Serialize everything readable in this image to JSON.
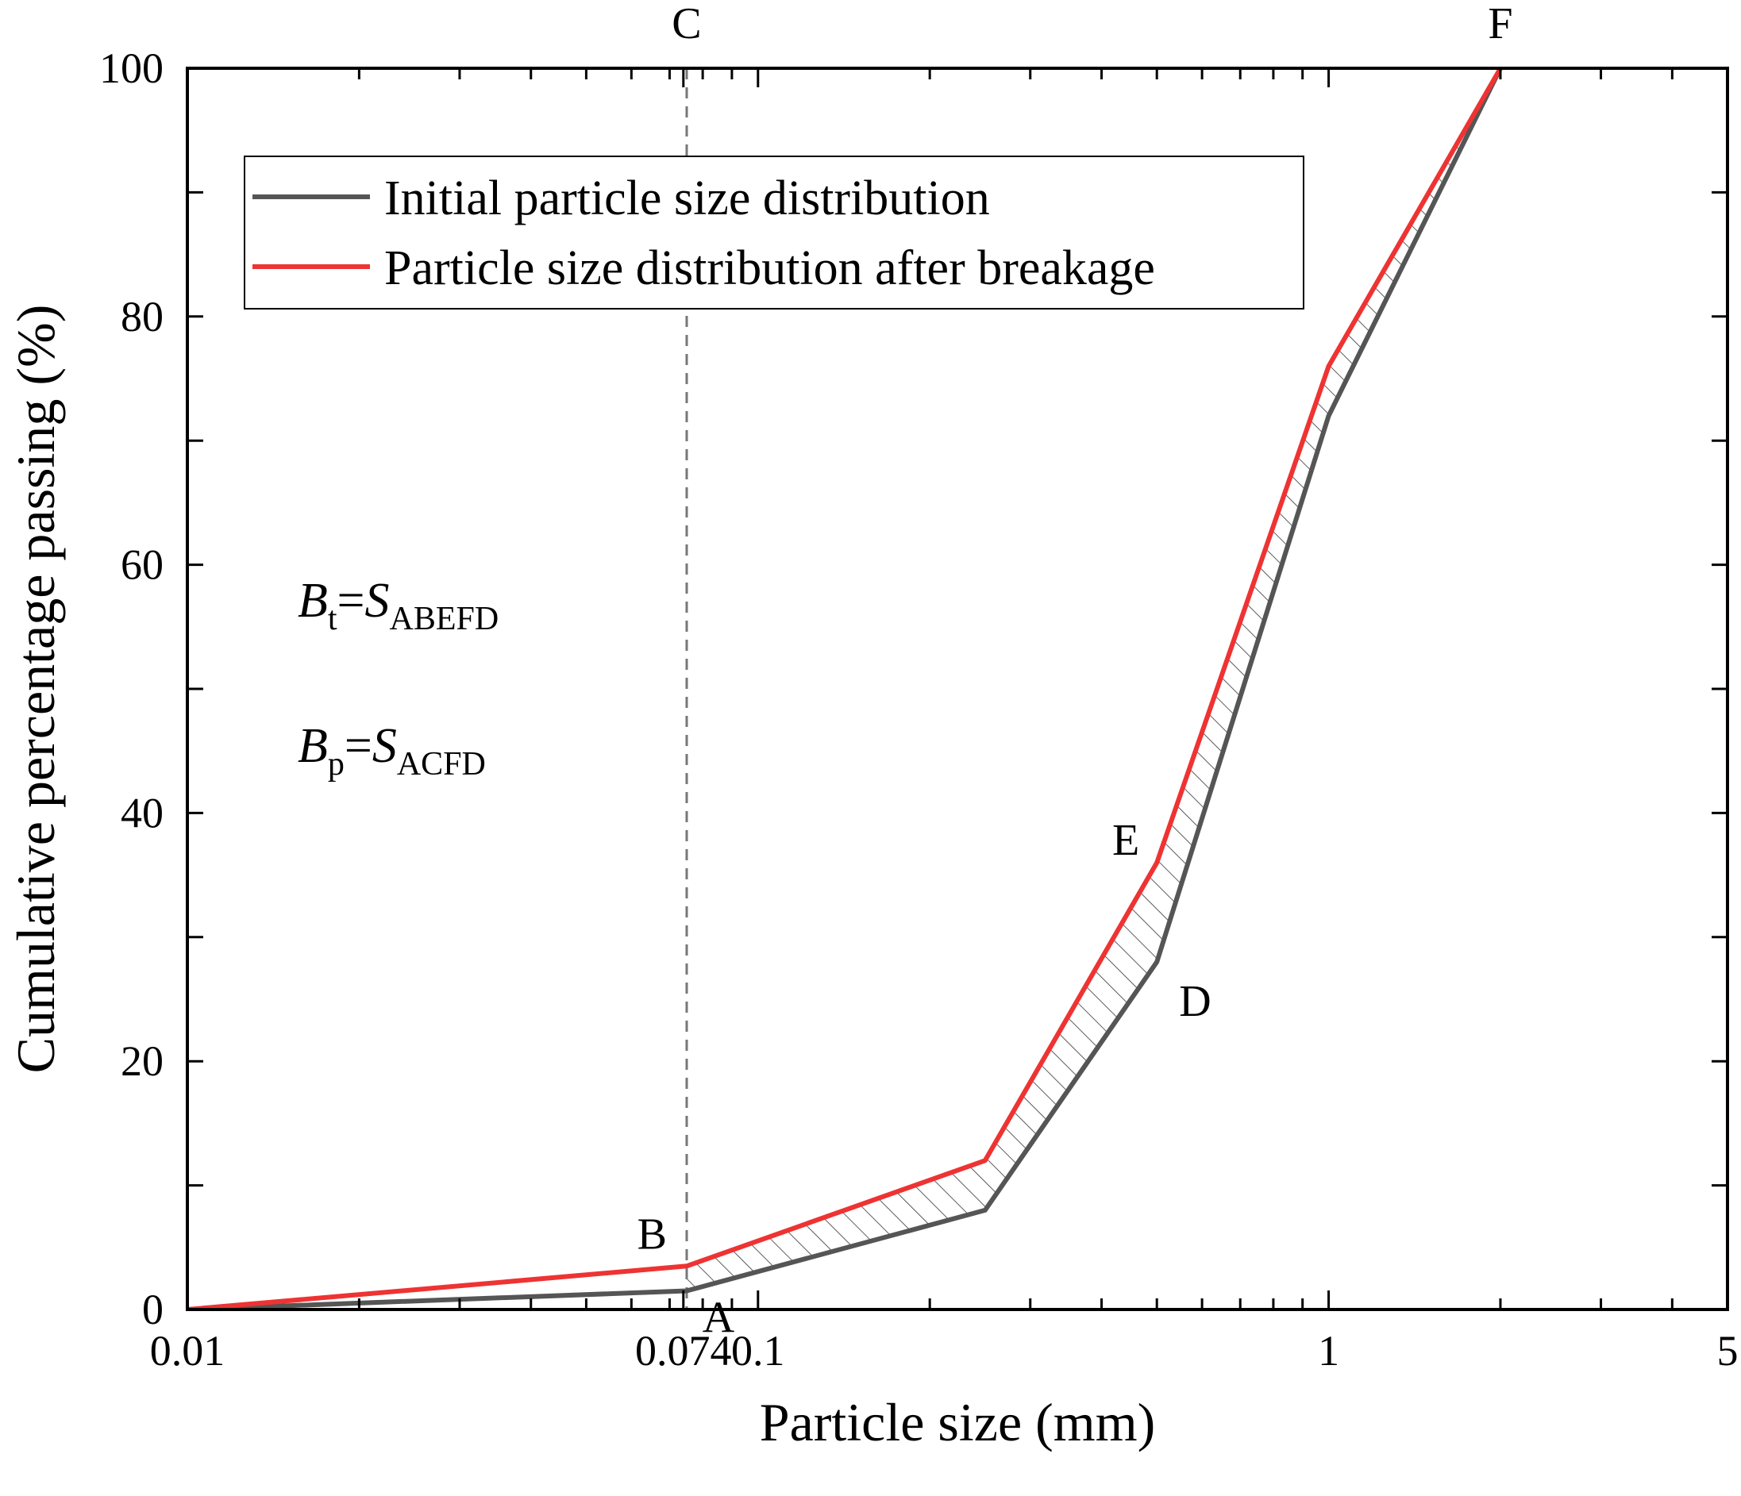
{
  "chart_data": {
    "type": "line",
    "xscale": "log",
    "xlim": [
      0.01,
      5
    ],
    "ylim": [
      0,
      100
    ],
    "xlabel": "Particle size (mm)",
    "ylabel": "Cumulative percentage passing (%)",
    "x_ticks": [
      {
        "value": 0.01,
        "label": "0.01"
      },
      {
        "value": 0.074,
        "label": "0.074"
      },
      {
        "value": 0.1,
        "label": "0.1"
      },
      {
        "value": 1,
        "label": "1"
      },
      {
        "value": 5,
        "label": "5"
      }
    ],
    "y_ticks": [
      {
        "value": 0,
        "label": "0"
      },
      {
        "value": 20,
        "label": "20"
      },
      {
        "value": 40,
        "label": "40"
      },
      {
        "value": 60,
        "label": "60"
      },
      {
        "value": 80,
        "label": "80"
      },
      {
        "value": 100,
        "label": "100"
      }
    ],
    "y_minor_step": 10,
    "series": [
      {
        "name": "Initial particle size distribution",
        "color": "#555555",
        "x": [
          0.01,
          0.075,
          0.25,
          0.5,
          1.0,
          2.0
        ],
        "y": [
          0,
          1.5,
          8,
          28,
          72,
          100
        ]
      },
      {
        "name": "Particle size distribution after breakage",
        "color": "#ee3333",
        "x": [
          0.01,
          0.075,
          0.25,
          0.5,
          1.0,
          2.0
        ],
        "y": [
          0,
          3.5,
          12,
          36,
          76,
          100
        ]
      }
    ],
    "reference_line": {
      "x": 0.075,
      "style": "dashed",
      "color": "#777777"
    },
    "hatched_region": {
      "between_series": [
        1,
        0
      ],
      "from_x": 0.075,
      "to_x": 2.0
    },
    "point_labels": [
      {
        "text": "A",
        "x": 0.075,
        "y": 1.5
      },
      {
        "text": "B",
        "x": 0.075,
        "y": 3.5
      },
      {
        "text": "C",
        "x": 0.075,
        "y": 100
      },
      {
        "text": "D",
        "x": 0.5,
        "y": 28
      },
      {
        "text": "E",
        "x": 0.5,
        "y": 36
      },
      {
        "text": "F",
        "x": 2.0,
        "y": 100
      }
    ],
    "legend": {
      "position": "top-left",
      "entries": [
        "Initial particle size distribution",
        "Particle size distribution after breakage"
      ]
    },
    "annotations": [
      {
        "B": "B",
        "sub1": "t",
        "eq": "=",
        "S": "S",
        "sub2": "ABEFD"
      },
      {
        "B": "B",
        "sub1": "p",
        "eq": "=",
        "S": "S",
        "sub2": "ACFD"
      }
    ]
  }
}
